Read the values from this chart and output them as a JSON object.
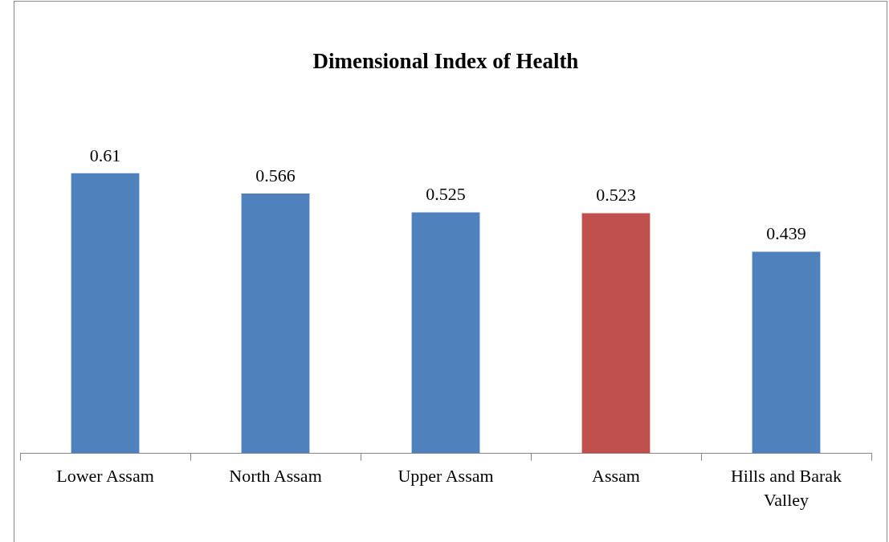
{
  "chart_data": {
    "type": "bar",
    "title": "Dimensional Index of Health",
    "categories": [
      "Lower Assam",
      "North Assam",
      "Upper Assam",
      "Assam",
      "Hills and Barak Valley"
    ],
    "values": [
      0.61,
      0.566,
      0.525,
      0.523,
      0.439
    ],
    "colors": [
      "#4f81bd",
      "#4f81bd",
      "#4f81bd",
      "#c0504d",
      "#4f81bd"
    ],
    "data_labels": true,
    "grid": false,
    "legend": false
  }
}
